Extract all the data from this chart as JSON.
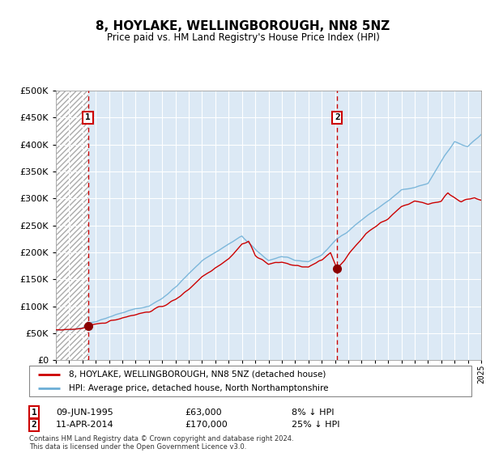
{
  "title": "8, HOYLAKE, WELLINGBOROUGH, NN8 5NZ",
  "subtitle": "Price paid vs. HM Land Registry's House Price Index (HPI)",
  "ylim": [
    0,
    500000
  ],
  "yticks": [
    0,
    50000,
    100000,
    150000,
    200000,
    250000,
    300000,
    350000,
    400000,
    450000,
    500000
  ],
  "ytick_labels": [
    "£0",
    "£50K",
    "£100K",
    "£150K",
    "£200K",
    "£250K",
    "£300K",
    "£350K",
    "£400K",
    "£450K",
    "£500K"
  ],
  "x_start_year": 1993,
  "x_end_year": 2025,
  "n_months": 385,
  "marker1_month": 29,
  "marker1_value": 63000,
  "marker1_date_str": "09-JUN-1995",
  "marker1_price": "£63,000",
  "marker1_hpi": "8% ↓ HPI",
  "marker2_month": 254,
  "marker2_value": 170000,
  "marker2_date_str": "11-APR-2014",
  "marker2_price": "£170,000",
  "marker2_hpi": "25% ↓ HPI",
  "hpi_line_color": "#6baed6",
  "price_line_color": "#cc0000",
  "marker_color": "#8b0000",
  "dashed_line_color": "#cc0000",
  "bg_color": "#dce9f5",
  "legend_line1": "8, HOYLAKE, WELLINGBOROUGH, NN8 5NZ (detached house)",
  "legend_line2": "HPI: Average price, detached house, North Northamptonshire",
  "footnote": "Contains HM Land Registry data © Crown copyright and database right 2024.\nThis data is licensed under the Open Government Licence v3.0."
}
